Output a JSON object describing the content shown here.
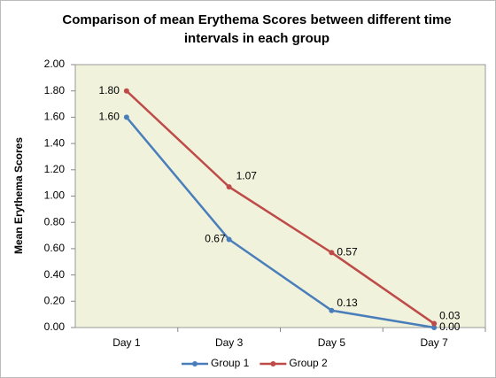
{
  "chart_data": {
    "type": "line",
    "title": "Comparison of mean Erythema Scores between different time intervals in each group",
    "y_label": "Mean Erythema Scores",
    "categories": [
      "Day 1",
      "Day 3",
      "Day 5",
      "Day 7"
    ],
    "series": [
      {
        "name": "Group 1",
        "color": "#4a7ebb",
        "values": [
          1.6,
          0.67,
          0.13,
          0
        ],
        "value_labels": [
          "1.60",
          "0.67",
          "0.13",
          "0.00"
        ]
      },
      {
        "name": "Group 2",
        "color": "#be4b48",
        "values": [
          1.8,
          1.07,
          0.57,
          0.03
        ],
        "value_labels": [
          "1.80",
          "1.07",
          "0.57",
          "0.03"
        ]
      }
    ],
    "ylim": [
      0,
      2
    ],
    "yticks": [
      {
        "value": 0,
        "label": "0.00"
      },
      {
        "value": 0.2,
        "label": "0.20"
      },
      {
        "value": 0.4,
        "label": "0.40"
      },
      {
        "value": 0.6,
        "label": "0.60"
      },
      {
        "value": 0.8,
        "label": "0.80"
      },
      {
        "value": 1,
        "label": "1.00"
      },
      {
        "value": 1.2,
        "label": "1.20"
      },
      {
        "value": 1.4,
        "label": "1.40"
      },
      {
        "value": 1.6,
        "label": "1.60"
      },
      {
        "value": 1.8,
        "label": "1.80"
      },
      {
        "value": 2,
        "label": "2.00"
      }
    ],
    "legend": "bottom"
  }
}
